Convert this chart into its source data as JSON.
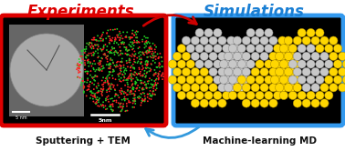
{
  "title_left": "Experiments",
  "title_right": "Simulations",
  "title_left_color": "#dd0000",
  "title_right_color": "#1a7fd4",
  "label_left": "Sputtering + TEM",
  "label_right": "Machine-learning MD",
  "label_color": "#111111",
  "bg_color": "#ffffff",
  "box_left_edge_color": "#dd0000",
  "box_right_edge_color": "#3399ee",
  "box_bg": "#000000",
  "arrow_color_red": "#cc0000",
  "arrow_color_blue": "#3399dd",
  "title_fontsize": 12,
  "label_fontsize": 7.5,
  "gold_color": "#FFD700",
  "silver_color": "#C8C8C8",
  "silver_dark": "#888888",
  "gold_dark": "#AA8800"
}
